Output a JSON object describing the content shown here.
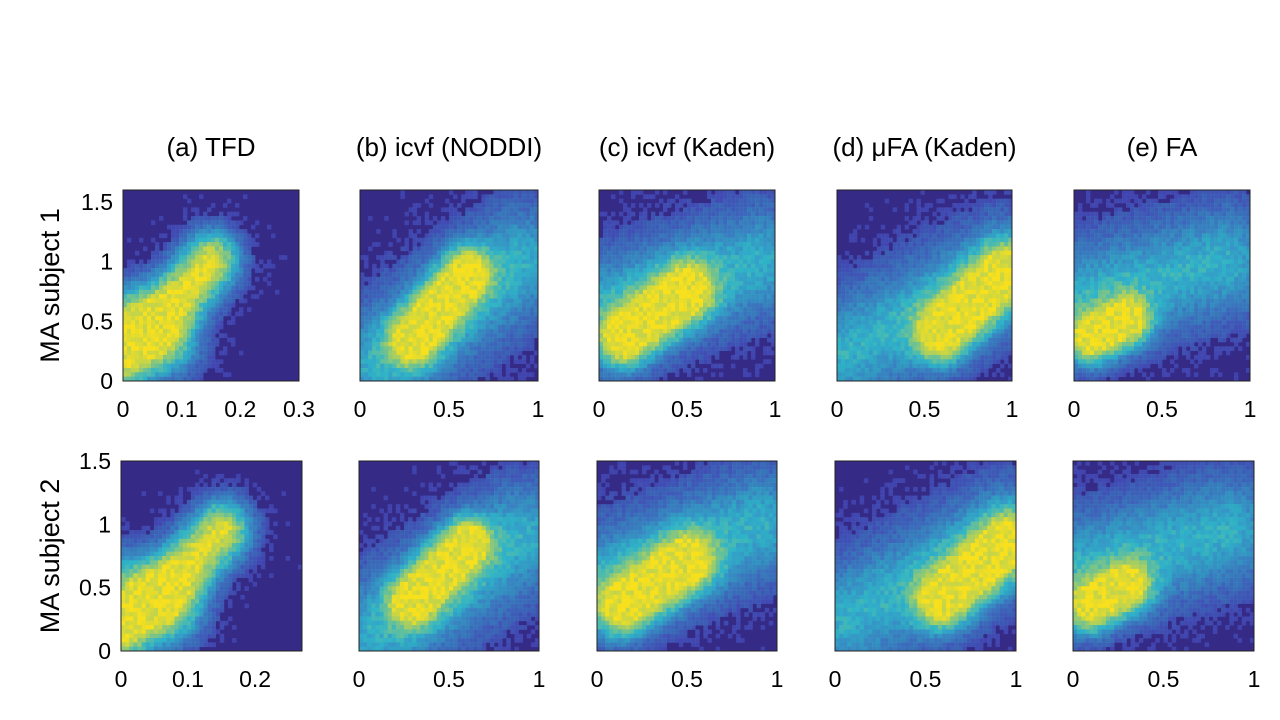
{
  "chart_data": [
    {
      "type": "heatmap",
      "title": "(a) TFD",
      "row_label": "MA subject 1",
      "x_ticks": [
        "0",
        "0.1",
        "0.2",
        "0.3"
      ],
      "y_ticks": [
        "0",
        "0.5",
        "1",
        "1.5"
      ],
      "xlim": [
        0,
        0.3
      ],
      "ylim": [
        0,
        1.6
      ],
      "density_ridges": [
        {
          "x": [
            0,
            0.15
          ],
          "y": [
            0.2,
            1.0
          ],
          "w": 0.28
        },
        {
          "x": [
            0,
            0.08
          ],
          "y": [
            0.55,
            0.3
          ],
          "w": 0.3
        }
      ]
    },
    {
      "type": "heatmap",
      "title": "(b) icvf (NODDI)",
      "row_label": "MA subject 1",
      "x_ticks": [
        "0",
        "0.5",
        "1"
      ],
      "y_ticks": [],
      "xlim": [
        0,
        1
      ],
      "ylim": [
        0,
        1.6
      ],
      "density_ridges": [
        {
          "x": [
            0.3,
            0.6
          ],
          "y": [
            0.35,
            0.9
          ],
          "w": 0.22
        },
        {
          "x": [
            0.1,
            0.9
          ],
          "y": [
            0.15,
            1.0
          ],
          "w": 0.5
        }
      ]
    },
    {
      "type": "heatmap",
      "title": "(c) icvf (Kaden)",
      "row_label": "MA subject 1",
      "x_ticks": [
        "0",
        "0.5",
        "1"
      ],
      "y_ticks": [],
      "xlim": [
        0,
        1
      ],
      "ylim": [
        0,
        1.6
      ],
      "density_ridges": [
        {
          "x": [
            0.15,
            0.5
          ],
          "y": [
            0.35,
            0.75
          ],
          "w": 0.25
        },
        {
          "x": [
            0.05,
            0.9
          ],
          "y": [
            0.6,
            1.0
          ],
          "w": 0.5
        }
      ]
    },
    {
      "type": "heatmap",
      "title": "(d) μFA (Kaden)",
      "row_label": "MA subject 1",
      "x_ticks": [
        "0",
        "0.5",
        "1"
      ],
      "y_ticks": [],
      "xlim": [
        0,
        1
      ],
      "ylim": [
        0,
        1.6
      ],
      "density_ridges": [
        {
          "x": [
            0.6,
            0.95
          ],
          "y": [
            0.4,
            0.9
          ],
          "w": 0.25
        },
        {
          "x": [
            0.05,
            0.95
          ],
          "y": [
            0.25,
            0.9
          ],
          "w": 0.5
        }
      ]
    },
    {
      "type": "heatmap",
      "title": "(e) FA",
      "row_label": "MA subject 1",
      "x_ticks": [
        "0",
        "0.5",
        "1"
      ],
      "y_ticks": [],
      "xlim": [
        0,
        1
      ],
      "ylim": [
        0,
        1.6
      ],
      "density_ridges": [
        {
          "x": [
            0.1,
            0.3
          ],
          "y": [
            0.35,
            0.5
          ],
          "w": 0.22
        },
        {
          "x": [
            0.05,
            0.85
          ],
          "y": [
            0.7,
            1.0
          ],
          "w": 0.5
        }
      ]
    },
    {
      "type": "heatmap",
      "title": "",
      "row_label": "MA subject 2",
      "x_ticks": [
        "0",
        "0.1",
        "0.2"
      ],
      "y_ticks": [
        "0",
        "0.5",
        "1",
        "1.5"
      ],
      "xlim": [
        0,
        0.27
      ],
      "ylim": [
        0,
        1.5
      ],
      "density_ridges": [
        {
          "x": [
            0,
            0.15
          ],
          "y": [
            0.15,
            0.95
          ],
          "w": 0.28
        },
        {
          "x": [
            0,
            0.08
          ],
          "y": [
            0.55,
            0.3
          ],
          "w": 0.3
        }
      ]
    },
    {
      "type": "heatmap",
      "title": "",
      "row_label": "MA subject 2",
      "x_ticks": [
        "0",
        "0.5",
        "1"
      ],
      "y_ticks": [],
      "xlim": [
        0,
        1
      ],
      "ylim": [
        0,
        1.5
      ],
      "density_ridges": [
        {
          "x": [
            0.3,
            0.6
          ],
          "y": [
            0.4,
            0.85
          ],
          "w": 0.22
        },
        {
          "x": [
            0.1,
            0.9
          ],
          "y": [
            0.15,
            0.9
          ],
          "w": 0.5
        }
      ]
    },
    {
      "type": "heatmap",
      "title": "",
      "row_label": "MA subject 2",
      "x_ticks": [
        "0",
        "0.5",
        "1"
      ],
      "y_ticks": [],
      "xlim": [
        0,
        1
      ],
      "ylim": [
        0,
        1.5
      ],
      "density_ridges": [
        {
          "x": [
            0.15,
            0.5
          ],
          "y": [
            0.35,
            0.7
          ],
          "w": 0.25
        },
        {
          "x": [
            0.05,
            0.9
          ],
          "y": [
            0.55,
            1.0
          ],
          "w": 0.5
        }
      ]
    },
    {
      "type": "heatmap",
      "title": "",
      "row_label": "MA subject 2",
      "x_ticks": [
        "0",
        "0.5",
        "1"
      ],
      "y_ticks": [],
      "xlim": [
        0,
        1
      ],
      "ylim": [
        0,
        1.5
      ],
      "density_ridges": [
        {
          "x": [
            0.6,
            0.95
          ],
          "y": [
            0.4,
            0.85
          ],
          "w": 0.25
        },
        {
          "x": [
            0.05,
            0.95
          ],
          "y": [
            0.25,
            0.9
          ],
          "w": 0.5
        }
      ]
    },
    {
      "type": "heatmap",
      "title": "",
      "row_label": "MA subject 2",
      "x_ticks": [
        "0",
        "0.5",
        "1"
      ],
      "y_ticks": [],
      "xlim": [
        0,
        1
      ],
      "ylim": [
        0,
        1.5
      ],
      "density_ridges": [
        {
          "x": [
            0.1,
            0.3
          ],
          "y": [
            0.35,
            0.5
          ],
          "w": 0.22
        },
        {
          "x": [
            0.05,
            0.85
          ],
          "y": [
            0.65,
            0.95
          ],
          "w": 0.5
        }
      ]
    }
  ],
  "colors": {
    "background": "#352a86",
    "low": "#4a56c8",
    "mid": "#2fb4c8",
    "high": "#f9e01c"
  }
}
